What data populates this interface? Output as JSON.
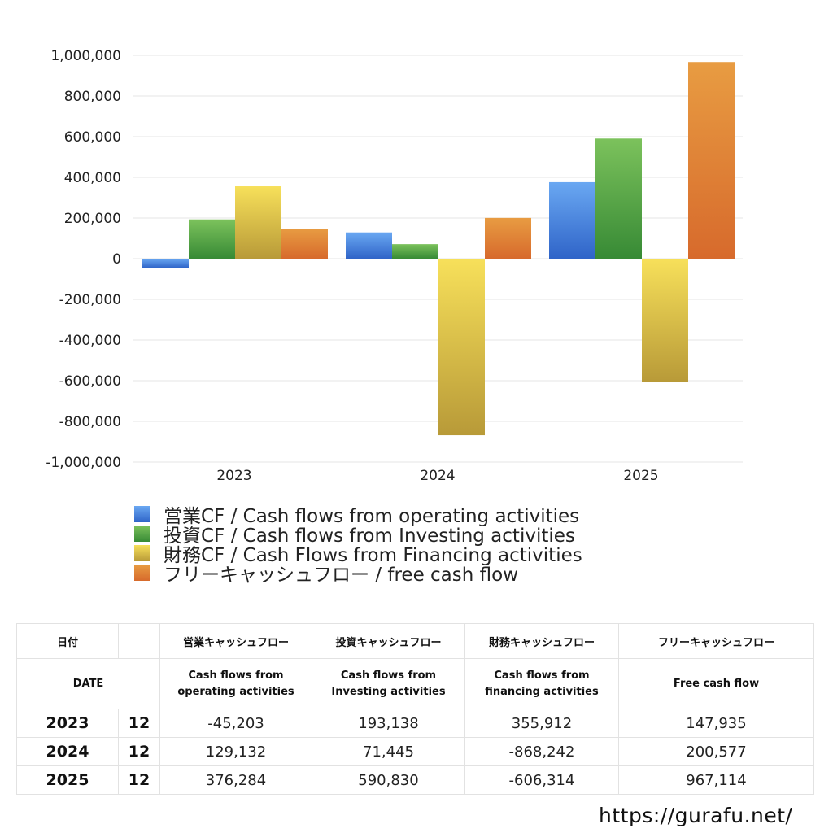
{
  "chart_data": {
    "type": "bar",
    "categories": [
      "2023",
      "2024",
      "2025"
    ],
    "series": [
      {
        "name": "営業CF / Cash flows from operating activities",
        "values": [
          -45203,
          129132,
          376284
        ],
        "color_top": "#6aa8f2",
        "color_bottom": "#2f64c8"
      },
      {
        "name": "投資CF / Cash flows from Investing activities",
        "values": [
          193138,
          71445,
          590830
        ],
        "color_top": "#7cc25c",
        "color_bottom": "#378a35"
      },
      {
        "name": "財務CF / Cash Flows from Financing activities",
        "values": [
          355912,
          -868242,
          -606314
        ],
        "color_top": "#f7e05a",
        "color_bottom": "#b89a38"
      },
      {
        "name": "フリーキャッシュフロー / free cash flow",
        "values": [
          147935,
          200577,
          967114
        ],
        "color_top": "#e89c42",
        "color_bottom": "#d76a2c"
      }
    ],
    "ylim": [
      -1000000,
      1000000
    ],
    "yticks": [
      "1,000,000",
      "800,000",
      "600,000",
      "400,000",
      "200,000",
      "0",
      "-200,000",
      "-400,000",
      "-600,000",
      "-800,000",
      "-1,000,000"
    ],
    "grid": true,
    "legend_position": "bottom-left"
  },
  "table": {
    "header1": [
      "日付",
      "",
      "営業キャッシュフロー",
      "投資キャッシュフロー",
      "財務キャッシュフロー",
      "フリーキャッシュフロー"
    ],
    "header2": {
      "date": "DATE",
      "op_1": "Cash flows from",
      "op_2": "operating activities",
      "inv_1": "Cash flows from",
      "inv_2": "Investing activities",
      "fin_1": "Cash flows from",
      "fin_2": "financing activities",
      "free": "Free cash flow"
    },
    "rows": [
      {
        "year": "2023",
        "month": "12",
        "op": "-45,203",
        "inv": "193,138",
        "fin": "355,912",
        "free": "147,935"
      },
      {
        "year": "2024",
        "month": "12",
        "op": "129,132",
        "inv": "71,445",
        "fin": "-868,242",
        "free": "200,577"
      },
      {
        "year": "2025",
        "month": "12",
        "op": "376,284",
        "inv": "590,830",
        "fin": "-606,314",
        "free": "967,114"
      }
    ]
  },
  "site_url": "https://gurafu.net/"
}
